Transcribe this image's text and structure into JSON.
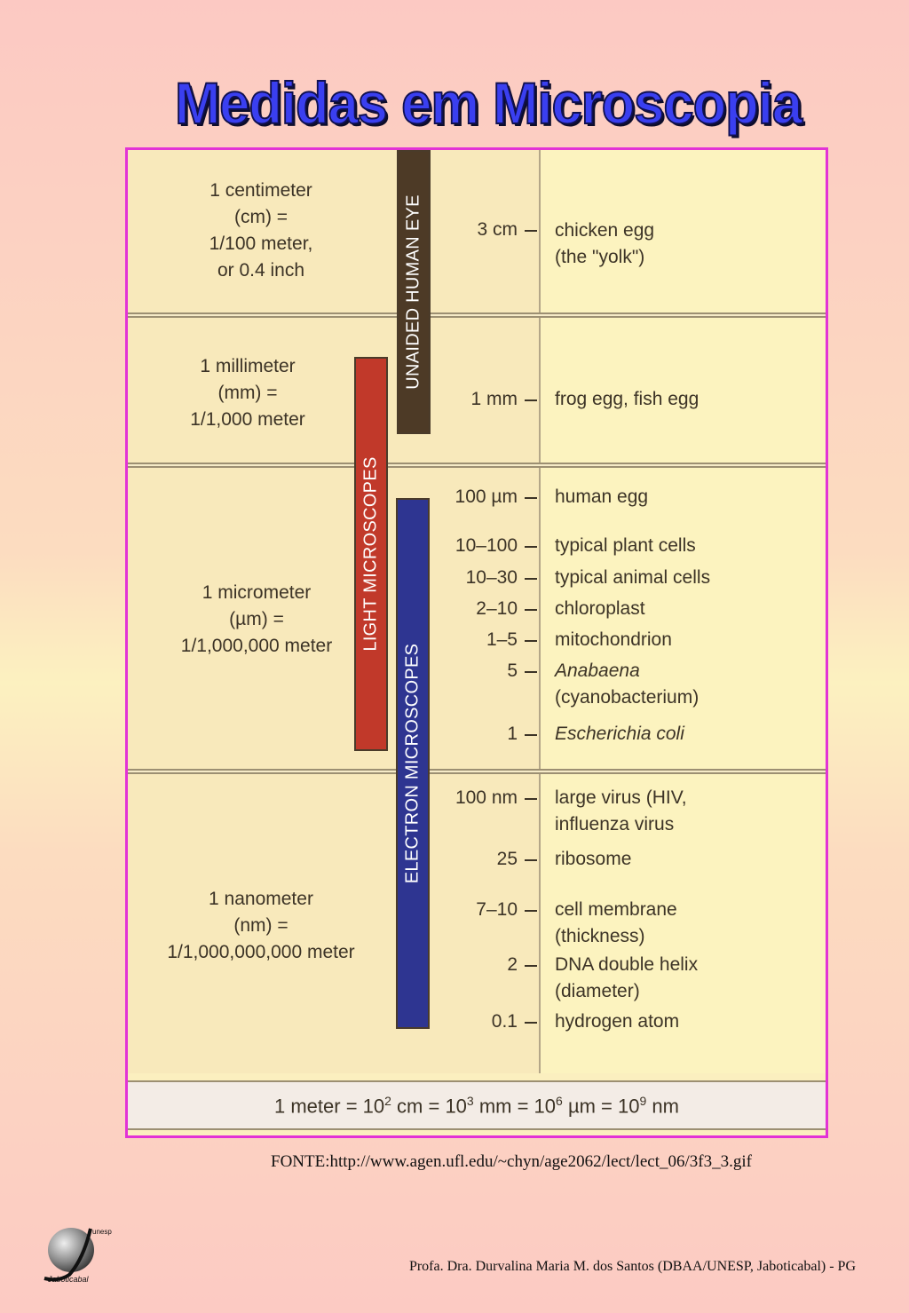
{
  "title": "Medidas em Microscopia",
  "units": [
    {
      "lines": [
        "1 centimeter",
        "(cm) =",
        "1/100 meter,",
        "or 0.4 inch"
      ]
    },
    {
      "lines": [
        "1 millimeter",
        "(mm) =",
        "1/1,000 meter"
      ]
    },
    {
      "lines": [
        "1 micrometer",
        "(µm) =",
        "1/1,000,000 meter"
      ]
    },
    {
      "lines": [
        "1 nanometer",
        "(nm) =",
        "1/1,000,000,000 meter"
      ]
    }
  ],
  "bars": {
    "eye": {
      "label": "UNAIDED HUMAN EYE",
      "color": "#4d3a26"
    },
    "light": {
      "label": "LIGHT MICROSCOPES",
      "color": "#c1392a"
    },
    "electron": {
      "label": "ELECTRON MICROSCOPES",
      "color": "#2e3591"
    }
  },
  "measurements": [
    "3 cm",
    "1 mm",
    "100 µm",
    "10–100",
    "10–30",
    "2–10",
    "1–5",
    "5",
    "1",
    "100 nm",
    "25",
    "7–10",
    "2",
    "0.1"
  ],
  "examples": [
    {
      "l1": "chicken egg",
      "l2": "(the \"yolk\")"
    },
    {
      "l1": "frog egg, fish egg"
    },
    {
      "l1": "human egg"
    },
    {
      "l1": "typical plant cells"
    },
    {
      "l1": "typical animal cells"
    },
    {
      "l1": "chloroplast"
    },
    {
      "l1": "mitochondrion"
    },
    {
      "l1": "Anabaena",
      "l2": "(cyanobacterium)"
    },
    {
      "l1": "Escherichia coli"
    },
    {
      "l1": "large virus (HIV,",
      "l2": "influenza virus"
    },
    {
      "l1": "ribosome"
    },
    {
      "l1": "cell membrane",
      "l2": "(thickness)"
    },
    {
      "l1": "DNA double helix",
      "l2": "(diameter)"
    },
    {
      "l1": "hydrogen atom"
    }
  ],
  "equation": {
    "p1": "1 meter = 10",
    "e1": "2",
    "p2": " cm = 10",
    "e2": "3",
    "p3": " mm = 10",
    "e3": "6",
    "p4": " µm = 10",
    "e4": "9",
    "p5": " nm"
  },
  "source": "FONTE:http://www.agen.ufl.edu/~chyn/age2062/lect/lect_06/3f3_3.gif",
  "credit": "Profa. Dra. Durvalina  Maria  M. dos Santos (DBAA/UNESP, Jaboticabal) - PG",
  "logo": {
    "top": "unesp",
    "bottom": "Jaboticabal"
  }
}
